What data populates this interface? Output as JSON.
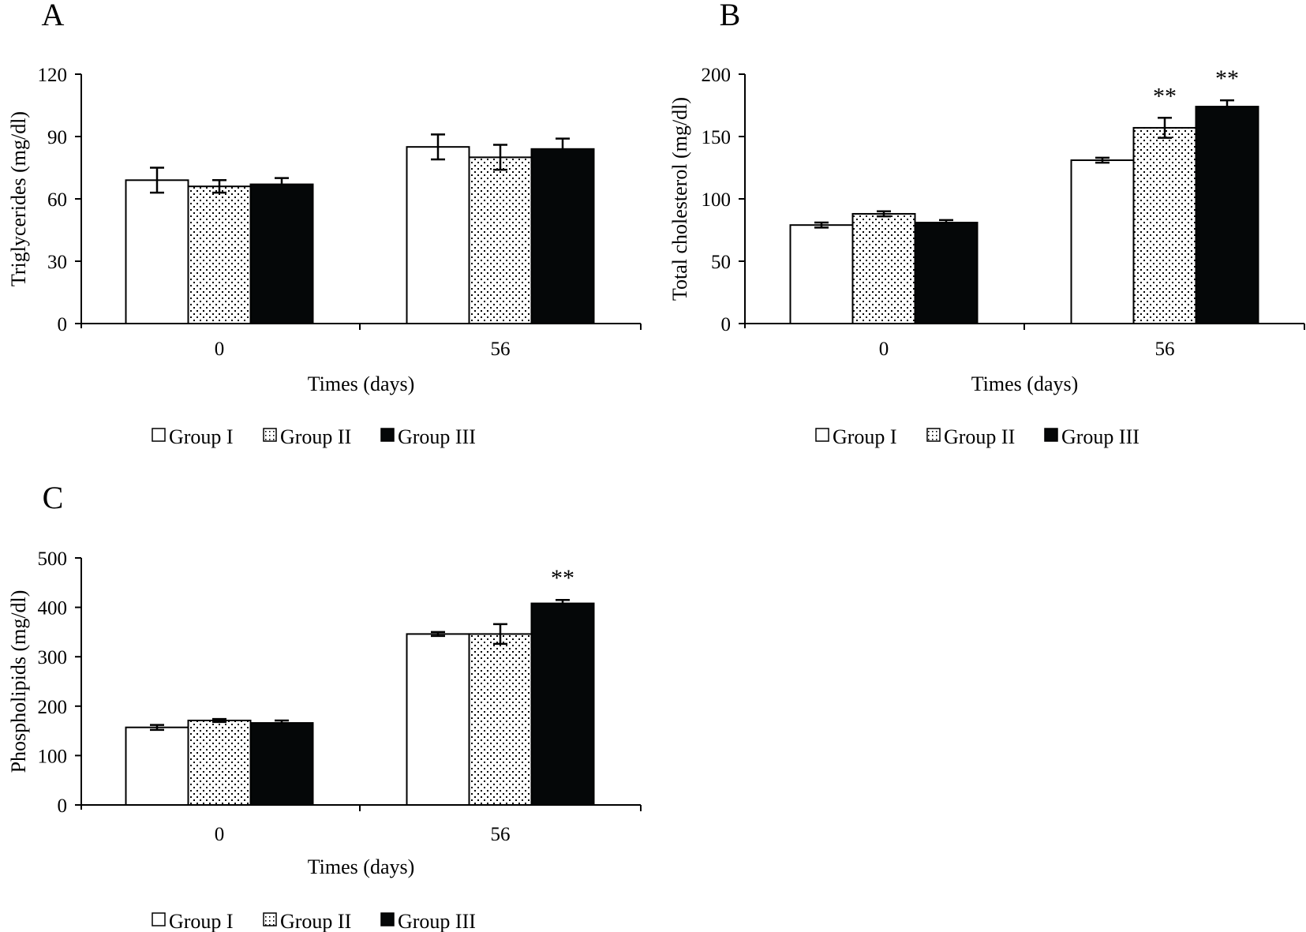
{
  "figure": {
    "legend_entries": [
      "Group I",
      "Group II",
      "Group III"
    ],
    "legend_fills": [
      "white",
      "dotted",
      "black"
    ]
  },
  "colors": {
    "axis": "#000000",
    "group_i_fill": "#ffffff",
    "group_ii_fill": "dotted",
    "group_iii_fill": "#050708"
  },
  "chart_data": [
    {
      "panel": "A",
      "type": "bar",
      "title": "",
      "xlabel": "Times (days)",
      "ylabel": "Triglycerides (mg/dl)",
      "categories": [
        "0",
        "56"
      ],
      "ylim": [
        0,
        120
      ],
      "yticks": [
        0,
        30,
        60,
        90,
        120
      ],
      "grid": false,
      "legend_position": "bottom",
      "series": [
        {
          "name": "Group I",
          "values": [
            69,
            85
          ],
          "errors": [
            6,
            6
          ],
          "annotations": [
            "",
            ""
          ]
        },
        {
          "name": "Group II",
          "values": [
            66,
            80
          ],
          "errors": [
            3,
            6
          ],
          "annotations": [
            "",
            ""
          ]
        },
        {
          "name": "Group III",
          "values": [
            67,
            84
          ],
          "errors": [
            3,
            5
          ],
          "annotations": [
            "",
            ""
          ]
        }
      ]
    },
    {
      "panel": "B",
      "type": "bar",
      "title": "",
      "xlabel": "Times (days)",
      "ylabel": "Total cholesterol (mg/dl)",
      "categories": [
        "0",
        "56"
      ],
      "ylim": [
        0,
        200
      ],
      "yticks": [
        0,
        50,
        100,
        150,
        200
      ],
      "grid": false,
      "legend_position": "bottom",
      "series": [
        {
          "name": "Group I",
          "values": [
            79,
            131
          ],
          "errors": [
            2,
            2
          ],
          "annotations": [
            "",
            ""
          ]
        },
        {
          "name": "Group II",
          "values": [
            88,
            157
          ],
          "errors": [
            2,
            8
          ],
          "annotations": [
            "",
            "**"
          ]
        },
        {
          "name": "Group III",
          "values": [
            81,
            174
          ],
          "errors": [
            2,
            5
          ],
          "annotations": [
            "",
            "**"
          ]
        }
      ]
    },
    {
      "panel": "C",
      "type": "bar",
      "title": "",
      "xlabel": "Times (days)",
      "ylabel": "Phospholipids (mg/dl)",
      "categories": [
        "0",
        "56"
      ],
      "ylim": [
        0,
        500
      ],
      "yticks": [
        0,
        100,
        200,
        300,
        400,
        500
      ],
      "grid": false,
      "legend_position": "bottom",
      "series": [
        {
          "name": "Group I",
          "values": [
            157,
            346
          ],
          "errors": [
            5,
            4
          ],
          "annotations": [
            "",
            ""
          ]
        },
        {
          "name": "Group II",
          "values": [
            171,
            346
          ],
          "errors": [
            3,
            20
          ],
          "annotations": [
            "",
            ""
          ]
        },
        {
          "name": "Group III",
          "values": [
            166,
            408
          ],
          "errors": [
            5,
            7
          ],
          "annotations": [
            "",
            "**"
          ]
        }
      ]
    }
  ]
}
